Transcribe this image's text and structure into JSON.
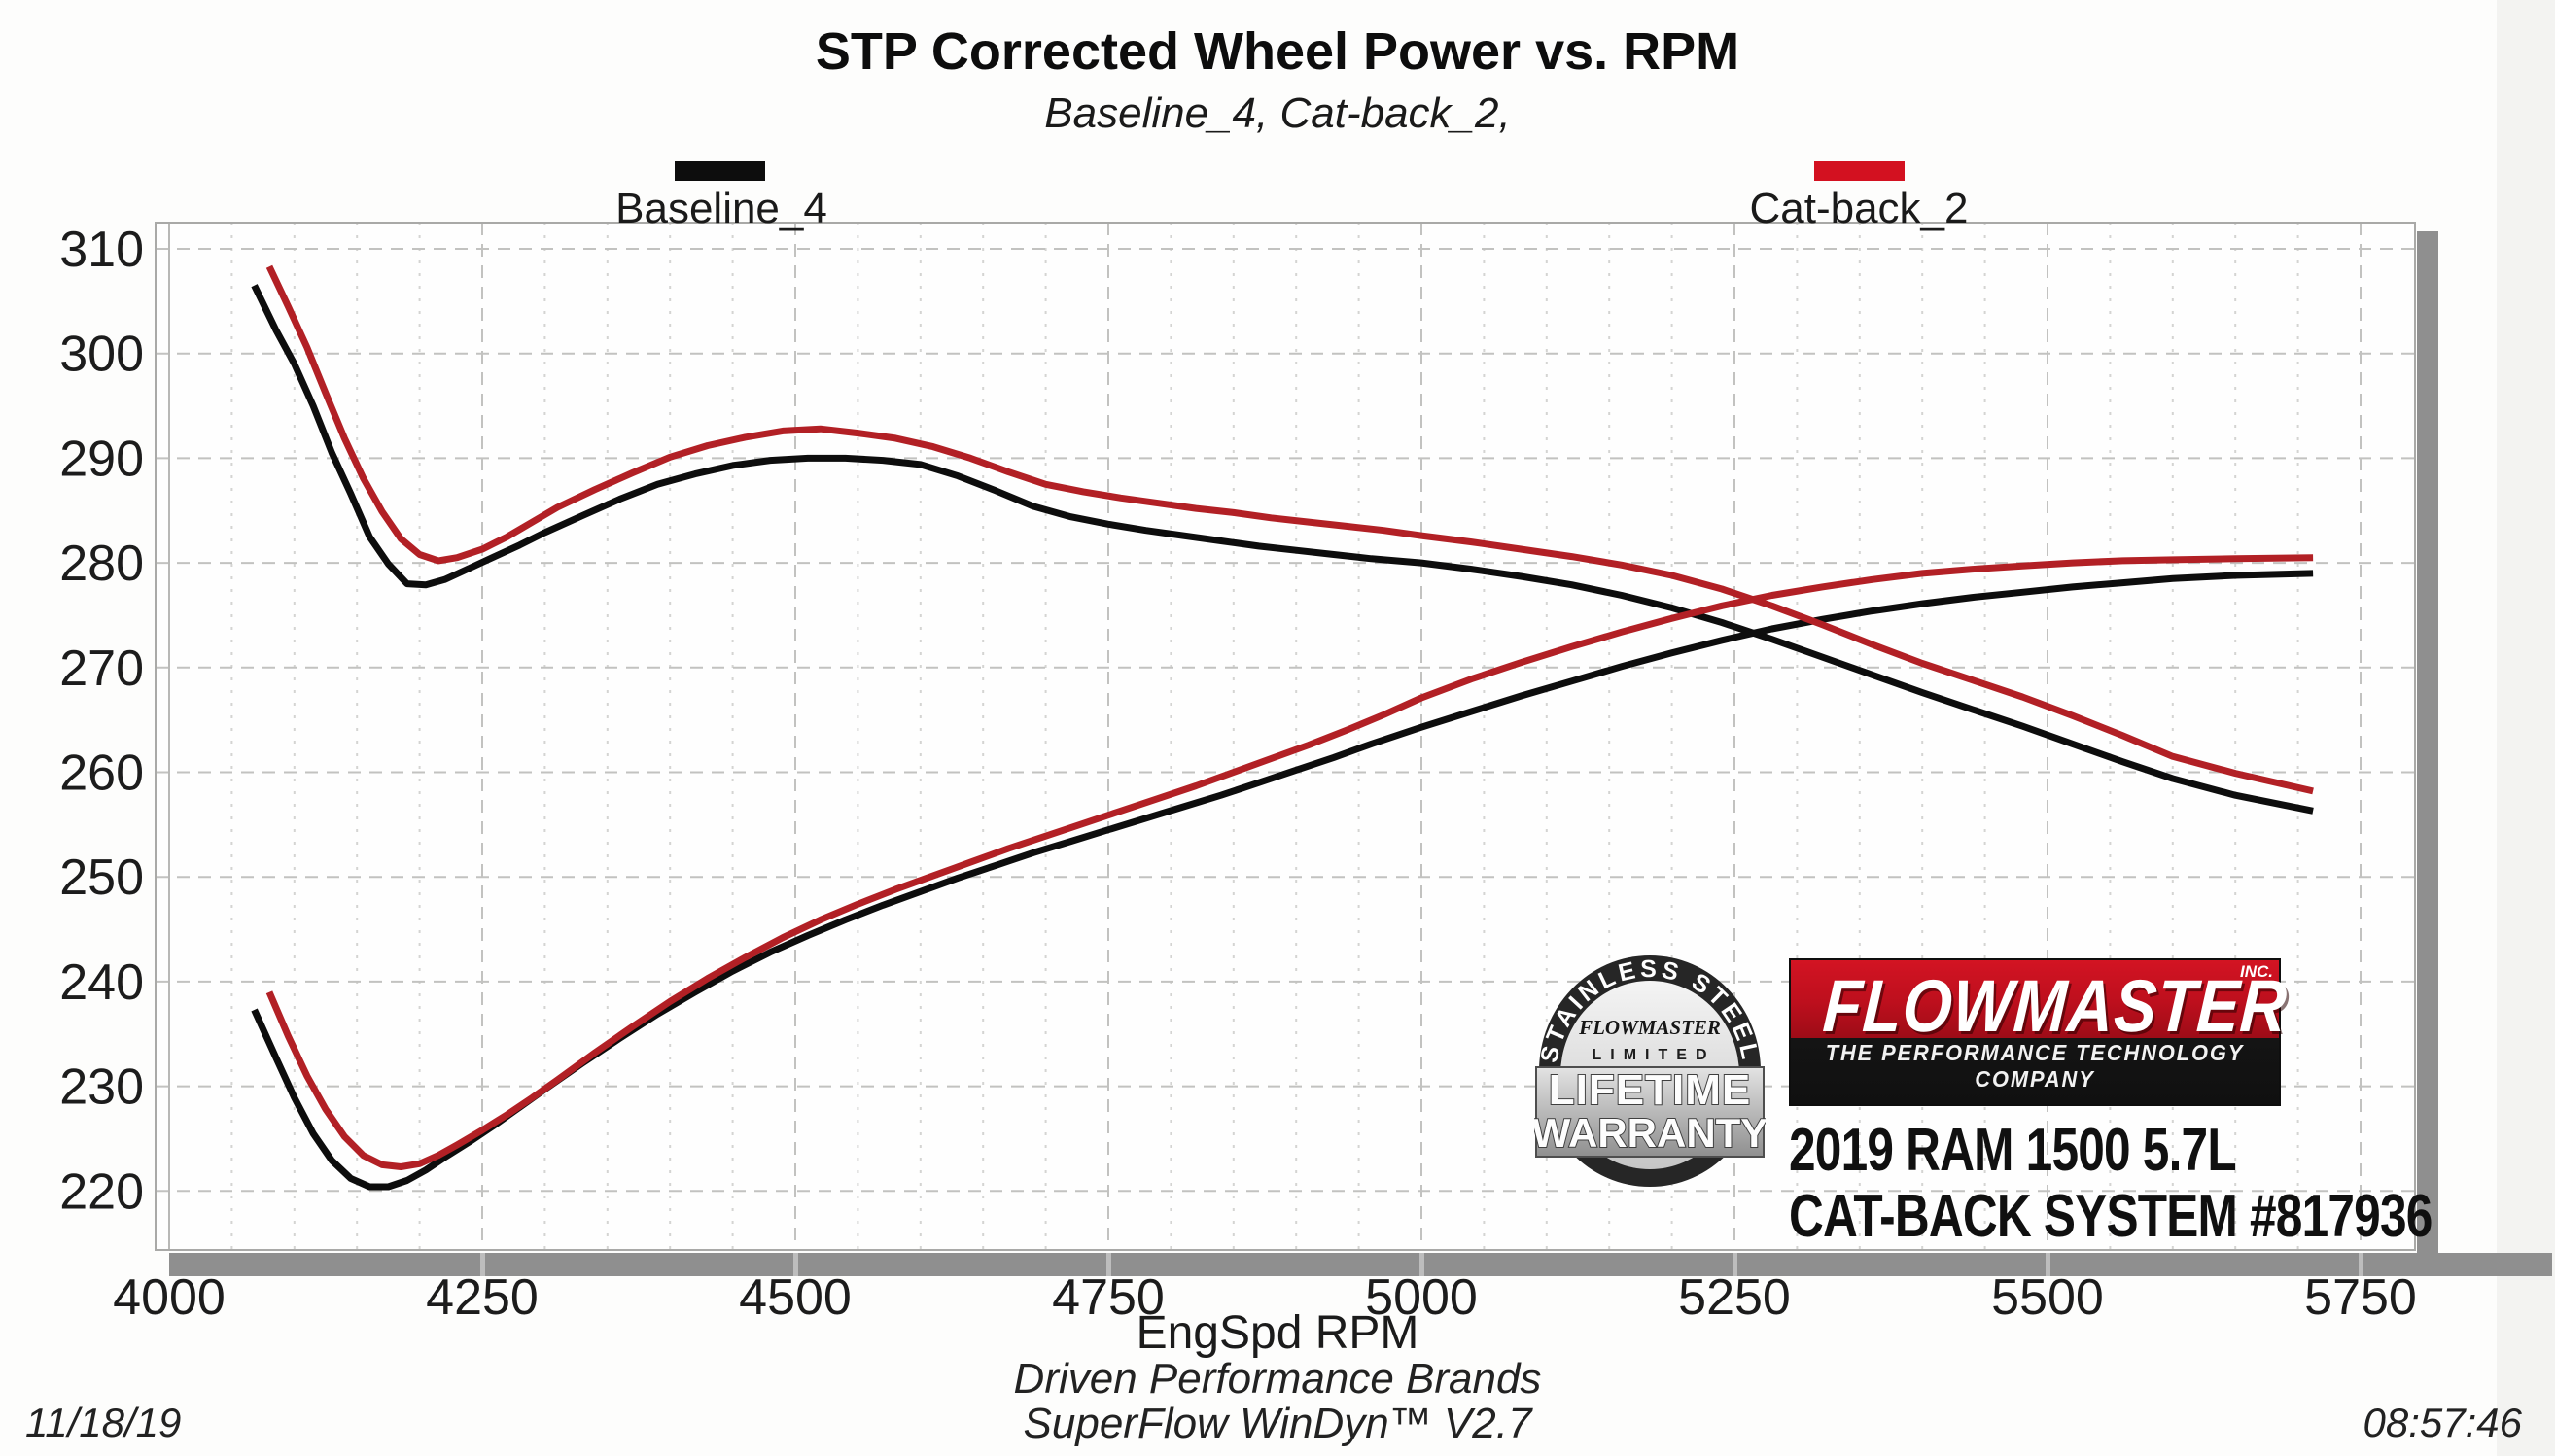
{
  "chart_data": {
    "type": "line",
    "title": "STP Corrected Wheel Power vs. RPM",
    "subtitle": "Baseline_4, Cat-back_2,",
    "xlabel": "EngSpd  RPM",
    "ylabel": "",
    "xlim": [
      3989,
      5793
    ],
    "ylim": [
      214.5,
      312.5
    ],
    "x_ticks": [
      4000,
      4250,
      4500,
      4750,
      5000,
      5250,
      5500,
      5750
    ],
    "x_minor_step": 50,
    "y_ticks": [
      220,
      230,
      240,
      250,
      260,
      270,
      280,
      290,
      300,
      310
    ],
    "grid": true,
    "legend_position": "top",
    "series": [
      {
        "name": "Baseline_4 (torque curve)",
        "color": "#0d0d0d",
        "points": [
          [
            4068,
            306.5
          ],
          [
            4085,
            302.3
          ],
          [
            4100,
            299
          ],
          [
            4115,
            295
          ],
          [
            4130,
            290.5
          ],
          [
            4145,
            286.6
          ],
          [
            4160,
            282.5
          ],
          [
            4175,
            279.9
          ],
          [
            4190,
            278
          ],
          [
            4205,
            277.9
          ],
          [
            4220,
            278.4
          ],
          [
            4240,
            279.5
          ],
          [
            4260,
            280.6
          ],
          [
            4280,
            281.7
          ],
          [
            4300,
            282.9
          ],
          [
            4330,
            284.5
          ],
          [
            4360,
            286.1
          ],
          [
            4390,
            287.5
          ],
          [
            4420,
            288.5
          ],
          [
            4450,
            289.3
          ],
          [
            4480,
            289.8
          ],
          [
            4510,
            290
          ],
          [
            4540,
            290
          ],
          [
            4570,
            289.8
          ],
          [
            4600,
            289.4
          ],
          [
            4630,
            288.3
          ],
          [
            4660,
            286.9
          ],
          [
            4690,
            285.4
          ],
          [
            4720,
            284.4
          ],
          [
            4750,
            283.7
          ],
          [
            4780,
            283.1
          ],
          [
            4810,
            282.6
          ],
          [
            4840,
            282.1
          ],
          [
            4870,
            281.6
          ],
          [
            4900,
            281.2
          ],
          [
            4930,
            280.8
          ],
          [
            4960,
            280.4
          ],
          [
            5000,
            280
          ],
          [
            5040,
            279.4
          ],
          [
            5080,
            278.7
          ],
          [
            5120,
            277.9
          ],
          [
            5160,
            276.9
          ],
          [
            5200,
            275.7
          ],
          [
            5240,
            274.3
          ],
          [
            5280,
            272.7
          ],
          [
            5320,
            271
          ],
          [
            5360,
            269.3
          ],
          [
            5400,
            267.6
          ],
          [
            5440,
            266
          ],
          [
            5480,
            264.4
          ],
          [
            5520,
            262.7
          ],
          [
            5560,
            261
          ],
          [
            5600,
            259.4
          ],
          [
            5650,
            257.8
          ],
          [
            5712,
            256.3
          ]
        ]
      },
      {
        "name": "Baseline_4 (power curve)",
        "color": "#0d0d0d",
        "points": [
          [
            4068,
            237.3
          ],
          [
            4085,
            232.8
          ],
          [
            4100,
            228.9
          ],
          [
            4115,
            225.5
          ],
          [
            4130,
            222.9
          ],
          [
            4145,
            221.2
          ],
          [
            4160,
            220.4
          ],
          [
            4175,
            220.4
          ],
          [
            4190,
            221
          ],
          [
            4205,
            222
          ],
          [
            4220,
            223.2
          ],
          [
            4240,
            224.7
          ],
          [
            4260,
            226.3
          ],
          [
            4280,
            228
          ],
          [
            4300,
            229.7
          ],
          [
            4330,
            232.2
          ],
          [
            4360,
            234.6
          ],
          [
            4390,
            236.9
          ],
          [
            4420,
            239
          ],
          [
            4450,
            241
          ],
          [
            4480,
            242.8
          ],
          [
            4510,
            244.4
          ],
          [
            4540,
            245.9
          ],
          [
            4570,
            247.3
          ],
          [
            4600,
            248.6
          ],
          [
            4630,
            249.9
          ],
          [
            4660,
            251.1
          ],
          [
            4690,
            252.3
          ],
          [
            4720,
            253.4
          ],
          [
            4750,
            254.5
          ],
          [
            4780,
            255.6
          ],
          [
            4810,
            256.7
          ],
          [
            4840,
            257.8
          ],
          [
            4870,
            259
          ],
          [
            4900,
            260.2
          ],
          [
            4930,
            261.4
          ],
          [
            4960,
            262.7
          ],
          [
            5000,
            264.3
          ],
          [
            5040,
            265.8
          ],
          [
            5080,
            267.3
          ],
          [
            5120,
            268.7
          ],
          [
            5160,
            270.1
          ],
          [
            5200,
            271.4
          ],
          [
            5240,
            272.6
          ],
          [
            5280,
            273.7
          ],
          [
            5320,
            274.6
          ],
          [
            5360,
            275.4
          ],
          [
            5400,
            276.1
          ],
          [
            5440,
            276.7
          ],
          [
            5480,
            277.2
          ],
          [
            5520,
            277.7
          ],
          [
            5560,
            278.1
          ],
          [
            5600,
            278.5
          ],
          [
            5650,
            278.8
          ],
          [
            5712,
            279
          ]
        ]
      },
      {
        "name": "Cat-back_2 (torque curve)",
        "color": "#b22025",
        "points": [
          [
            4080,
            308.3
          ],
          [
            4095,
            304.5
          ],
          [
            4110,
            300.6
          ],
          [
            4125,
            296.2
          ],
          [
            4140,
            291.9
          ],
          [
            4155,
            288.1
          ],
          [
            4170,
            284.9
          ],
          [
            4185,
            282.3
          ],
          [
            4200,
            280.8
          ],
          [
            4215,
            280.2
          ],
          [
            4230,
            280.5
          ],
          [
            4250,
            281.3
          ],
          [
            4270,
            282.5
          ],
          [
            4290,
            283.9
          ],
          [
            4310,
            285.3
          ],
          [
            4340,
            287
          ],
          [
            4370,
            288.6
          ],
          [
            4400,
            290.1
          ],
          [
            4430,
            291.2
          ],
          [
            4460,
            292
          ],
          [
            4490,
            292.6
          ],
          [
            4520,
            292.8
          ],
          [
            4550,
            292.4
          ],
          [
            4580,
            291.9
          ],
          [
            4610,
            291.1
          ],
          [
            4640,
            290
          ],
          [
            4670,
            288.7
          ],
          [
            4700,
            287.5
          ],
          [
            4730,
            286.8
          ],
          [
            4760,
            286.2
          ],
          [
            4790,
            285.7
          ],
          [
            4820,
            285.2
          ],
          [
            4850,
            284.8
          ],
          [
            4880,
            284.3
          ],
          [
            4910,
            283.9
          ],
          [
            4940,
            283.5
          ],
          [
            4970,
            283.1
          ],
          [
            5000,
            282.6
          ],
          [
            5040,
            282
          ],
          [
            5080,
            281.3
          ],
          [
            5120,
            280.6
          ],
          [
            5160,
            279.8
          ],
          [
            5200,
            278.8
          ],
          [
            5240,
            277.5
          ],
          [
            5280,
            275.9
          ],
          [
            5320,
            274.1
          ],
          [
            5360,
            272.2
          ],
          [
            5400,
            270.4
          ],
          [
            5440,
            268.8
          ],
          [
            5480,
            267.2
          ],
          [
            5520,
            265.4
          ],
          [
            5560,
            263.5
          ],
          [
            5600,
            261.5
          ],
          [
            5650,
            259.9
          ],
          [
            5712,
            258.2
          ]
        ]
      },
      {
        "name": "Cat-back_2 (power curve)",
        "color": "#b22025",
        "points": [
          [
            4080,
            239
          ],
          [
            4095,
            234.8
          ],
          [
            4110,
            231
          ],
          [
            4125,
            227.8
          ],
          [
            4140,
            225.2
          ],
          [
            4155,
            223.4
          ],
          [
            4170,
            222.5
          ],
          [
            4185,
            222.3
          ],
          [
            4200,
            222.6
          ],
          [
            4215,
            223.4
          ],
          [
            4230,
            224.4
          ],
          [
            4250,
            225.8
          ],
          [
            4270,
            227.3
          ],
          [
            4290,
            228.9
          ],
          [
            4310,
            230.6
          ],
          [
            4340,
            233.2
          ],
          [
            4370,
            235.7
          ],
          [
            4400,
            238.1
          ],
          [
            4430,
            240.3
          ],
          [
            4460,
            242.3
          ],
          [
            4490,
            244.2
          ],
          [
            4520,
            245.9
          ],
          [
            4550,
            247.4
          ],
          [
            4580,
            248.8
          ],
          [
            4610,
            250.1
          ],
          [
            4640,
            251.4
          ],
          [
            4670,
            252.7
          ],
          [
            4700,
            253.9
          ],
          [
            4730,
            255.1
          ],
          [
            4760,
            256.3
          ],
          [
            4790,
            257.5
          ],
          [
            4820,
            258.7
          ],
          [
            4850,
            260
          ],
          [
            4880,
            261.3
          ],
          [
            4910,
            262.6
          ],
          [
            4940,
            264
          ],
          [
            4970,
            265.5
          ],
          [
            5000,
            267.1
          ],
          [
            5040,
            268.9
          ],
          [
            5080,
            270.5
          ],
          [
            5120,
            272
          ],
          [
            5160,
            273.4
          ],
          [
            5200,
            274.7
          ],
          [
            5240,
            275.9
          ],
          [
            5280,
            276.9
          ],
          [
            5320,
            277.7
          ],
          [
            5360,
            278.4
          ],
          [
            5400,
            279
          ],
          [
            5440,
            279.4
          ],
          [
            5480,
            279.7
          ],
          [
            5520,
            280
          ],
          [
            5560,
            280.2
          ],
          [
            5600,
            280.3
          ],
          [
            5650,
            280.4
          ],
          [
            5712,
            280.5
          ]
        ]
      }
    ]
  },
  "legend": {
    "items": [
      {
        "label": "Baseline_4",
        "color": "#0d0d0d"
      },
      {
        "label": "Cat-back_2",
        "color": "#d31120"
      }
    ]
  },
  "branding": {
    "logo": {
      "name": "FLOWMASTER",
      "suffix": "INC.",
      "tagline": "THE PERFORMANCE TECHNOLOGY COMPANY",
      "red": "#c8101e",
      "black": "#101010"
    },
    "badge": {
      "arc_top": "STAINLESS STEEL",
      "brand": "FLOWMASTER",
      "limited": "LIMITED",
      "line1": "LIFETIME",
      "line2": "WARRANTY"
    },
    "vehicle_line1": "2019 RAM 1500 5.7L",
    "vehicle_line2": "CAT-BACK SYSTEM #817936"
  },
  "footer": {
    "brand_line": "Driven Performance Brands",
    "software_line": "SuperFlow WinDyn™ V2.7",
    "date": "11/18/19",
    "time": "08:57:46"
  }
}
